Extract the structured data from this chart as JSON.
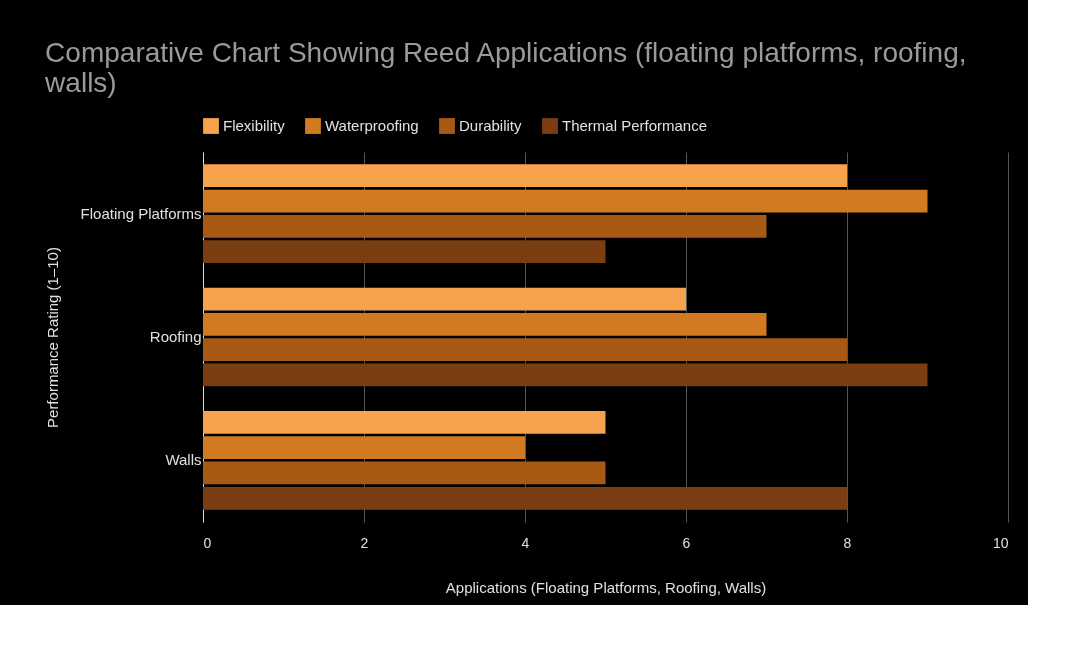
{
  "chart_data": {
    "type": "bar",
    "orientation": "horizontal",
    "title": "Comparative Chart Showing Reed Applications (floating platforms, roofing, walls)",
    "xlabel": "Applications (Floating Platforms, Roofing, Walls)",
    "ylabel": "Performance Rating (1–10)",
    "categories": [
      "Floating Platforms",
      "Roofing",
      "Walls"
    ],
    "series": [
      {
        "name": "Flexibility",
        "color": "#f7a24c",
        "values": [
          8,
          6,
          5
        ]
      },
      {
        "name": "Waterproofing",
        "color": "#d27a22",
        "values": [
          9,
          7,
          4
        ]
      },
      {
        "name": "Durability",
        "color": "#a85a14",
        "values": [
          7,
          8,
          5
        ]
      },
      {
        "name": "Thermal Performance",
        "color": "#7a3e12",
        "values": [
          5,
          9,
          8
        ]
      }
    ],
    "xlim": [
      0,
      10
    ],
    "xticks": [
      0,
      2,
      4,
      6,
      8,
      10
    ],
    "grid": "x",
    "legend": "top"
  }
}
